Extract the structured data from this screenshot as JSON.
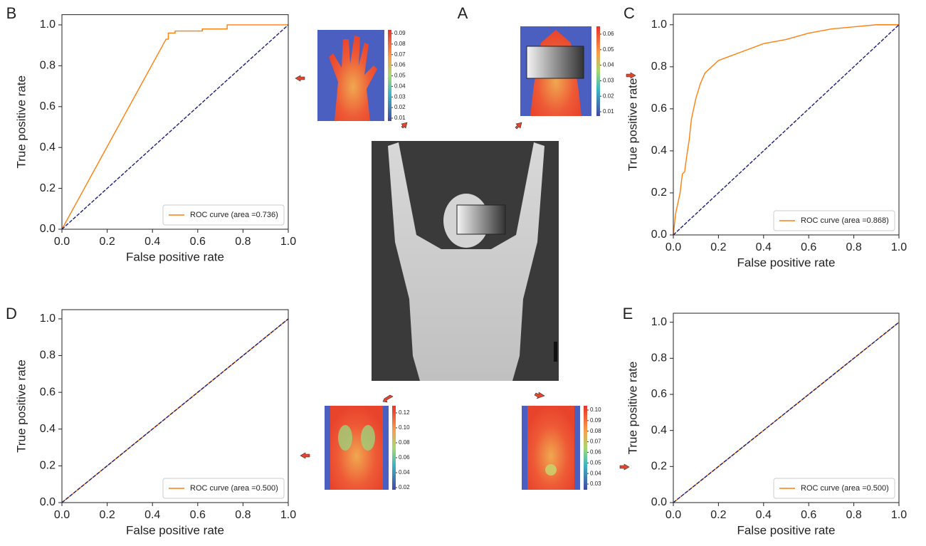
{
  "panel_labels": [
    "A",
    "B",
    "C",
    "D",
    "E"
  ],
  "chart_data": [
    {
      "type": "line",
      "xlabel": "False positive rate",
      "ylabel": "True positive rate",
      "xlim": [
        0,
        1
      ],
      "ylim": [
        0,
        1.05
      ],
      "xticks": [
        {
          "value": 0,
          "label": "0.0"
        },
        {
          "value": 0.2,
          "label": "0.2"
        },
        {
          "value": 0.4,
          "label": "0.4"
        },
        {
          "value": 0.6,
          "label": "0.6"
        },
        {
          "value": 0.8,
          "label": "0.8"
        },
        {
          "value": 1,
          "label": "1.0"
        }
      ],
      "yticks": [
        {
          "value": 0,
          "label": "0.0"
        },
        {
          "value": 0.2,
          "label": "0.2"
        },
        {
          "value": 0.4,
          "label": "0.4"
        },
        {
          "value": 0.6,
          "label": "0.6"
        },
        {
          "value": 0.8,
          "label": "0.8"
        },
        {
          "value": 1,
          "label": "1.0"
        }
      ],
      "legend": "lower right",
      "series": [
        {
          "name": "ROC curve (area =0.736)",
          "color": "#ff7f0e",
          "linestyle": "solid",
          "x": [
            0,
            0.46,
            0.47,
            0.47,
            0.5,
            0.5,
            0.62,
            0.62,
            0.73,
            0.73,
            1
          ],
          "values": [
            0,
            0.93,
            0.93,
            0.96,
            0.96,
            0.97,
            0.97,
            0.98,
            0.98,
            1,
            1
          ]
        },
        {
          "color": "#1c1c7a",
          "linestyle": "dashed",
          "x": [
            0,
            1
          ],
          "values": [
            0,
            1
          ]
        }
      ]
    },
    {
      "type": "line",
      "xlabel": "False positive rate",
      "ylabel": "True positive rate",
      "xlim": [
        0,
        1
      ],
      "ylim": [
        0,
        1.05
      ],
      "xticks": [
        {
          "value": 0,
          "label": "0.0"
        },
        {
          "value": 0.2,
          "label": "0.2"
        },
        {
          "value": 0.4,
          "label": "0.4"
        },
        {
          "value": 0.6,
          "label": "0.6"
        },
        {
          "value": 0.8,
          "label": "0.8"
        },
        {
          "value": 1,
          "label": "1.0"
        }
      ],
      "yticks": [
        {
          "value": 0,
          "label": "0.0"
        },
        {
          "value": 0.2,
          "label": "0.2"
        },
        {
          "value": 0.4,
          "label": "0.4"
        },
        {
          "value": 0.6,
          "label": "0.6"
        },
        {
          "value": 0.8,
          "label": "0.8"
        },
        {
          "value": 1,
          "label": "1.0"
        }
      ],
      "legend": "lower right",
      "series": [
        {
          "name": "ROC curve (area =0.868)",
          "color": "#ff7f0e",
          "linestyle": "solid",
          "x": [
            0,
            0.01,
            0.03,
            0.04,
            0.05,
            0.06,
            0.07,
            0.08,
            0.1,
            0.12,
            0.14,
            0.17,
            0.2,
            0.25,
            0.3,
            0.4,
            0.5,
            0.6,
            0.7,
            0.8,
            0.9,
            1
          ],
          "values": [
            0,
            0.1,
            0.2,
            0.29,
            0.3,
            0.38,
            0.45,
            0.55,
            0.65,
            0.72,
            0.77,
            0.8,
            0.83,
            0.85,
            0.87,
            0.91,
            0.93,
            0.96,
            0.98,
            0.99,
            1,
            1
          ]
        },
        {
          "color": "#1c1c7a",
          "linestyle": "dashed",
          "x": [
            0,
            1
          ],
          "values": [
            0,
            1
          ]
        }
      ]
    },
    {
      "type": "line",
      "xlabel": "False positive rate",
      "ylabel": "True positive rate",
      "xlim": [
        0,
        1
      ],
      "ylim": [
        0,
        1.05
      ],
      "xticks": [
        {
          "value": 0,
          "label": "0.0"
        },
        {
          "value": 0.2,
          "label": "0.2"
        },
        {
          "value": 0.4,
          "label": "0.4"
        },
        {
          "value": 0.6,
          "label": "0.6"
        },
        {
          "value": 0.8,
          "label": "0.8"
        },
        {
          "value": 1,
          "label": "1.0"
        }
      ],
      "yticks": [
        {
          "value": 0,
          "label": "0.0"
        },
        {
          "value": 0.2,
          "label": "0.2"
        },
        {
          "value": 0.4,
          "label": "0.4"
        },
        {
          "value": 0.6,
          "label": "0.6"
        },
        {
          "value": 0.8,
          "label": "0.8"
        },
        {
          "value": 1,
          "label": "1.0"
        }
      ],
      "legend": "lower right",
      "series": [
        {
          "name": "ROC curve (area =0.500)",
          "color": "#ff7f0e",
          "linestyle": "solid",
          "x": [
            0,
            1
          ],
          "values": [
            0,
            1
          ]
        },
        {
          "color": "#1c1c7a",
          "linestyle": "dashed",
          "x": [
            0,
            1
          ],
          "values": [
            0,
            1
          ]
        }
      ]
    },
    {
      "type": "line",
      "xlabel": "False positive rate",
      "ylabel": "True positive rate",
      "xlim": [
        0,
        1
      ],
      "ylim": [
        0,
        1.05
      ],
      "xticks": [
        {
          "value": 0,
          "label": "0.0"
        },
        {
          "value": 0.2,
          "label": "0.2"
        },
        {
          "value": 0.4,
          "label": "0.4"
        },
        {
          "value": 0.6,
          "label": "0.6"
        },
        {
          "value": 0.8,
          "label": "0.8"
        },
        {
          "value": 1,
          "label": "1.0"
        }
      ],
      "yticks": [
        {
          "value": 0,
          "label": "0.0"
        },
        {
          "value": 0.2,
          "label": "0.2"
        },
        {
          "value": 0.4,
          "label": "0.4"
        },
        {
          "value": 0.6,
          "label": "0.6"
        },
        {
          "value": 0.8,
          "label": "0.8"
        },
        {
          "value": 1,
          "label": "1.0"
        }
      ],
      "legend": "lower right",
      "series": [
        {
          "name": "ROC curve (area =0.500)",
          "color": "#ff7f0e",
          "linestyle": "solid",
          "x": [
            0,
            1
          ],
          "values": [
            0,
            1
          ]
        },
        {
          "color": "#1c1c7a",
          "linestyle": "dashed",
          "x": [
            0,
            1
          ],
          "values": [
            0,
            1
          ]
        }
      ]
    }
  ],
  "colorbars": [
    {
      "ticks": [
        0.09,
        0.08,
        0.07,
        0.06,
        0.05,
        0.04,
        0.03,
        0.02,
        0.01
      ]
    },
    {
      "ticks": [
        0.06,
        0.05,
        0.04,
        0.03,
        0.02,
        0.01
      ]
    },
    {
      "ticks": [
        0.12,
        {
          "value": 0.1,
          "label": "0.10"
        },
        0.08,
        0.06,
        0.04,
        0.02
      ]
    },
    {
      "ticks": [
        {
          "value": 0.1,
          "label": "0.10"
        },
        0.09,
        0.08,
        0.07,
        0.06,
        0.05,
        0.04,
        0.03
      ]
    }
  ]
}
